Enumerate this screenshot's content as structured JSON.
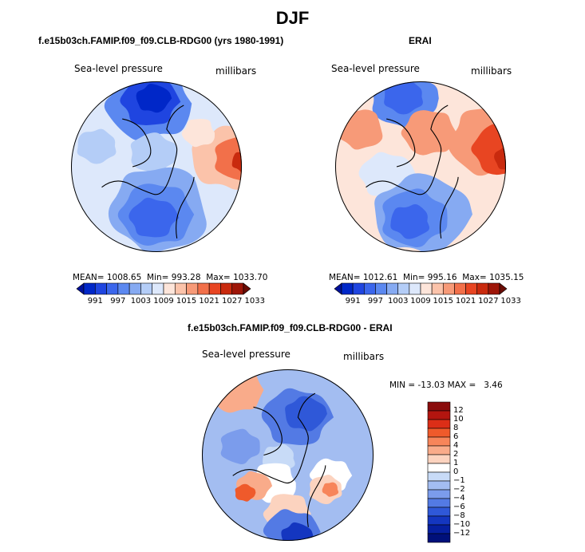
{
  "page_title": "DJF",
  "chart_data": [
    {
      "type": "heatmap",
      "projection": "north-polar-stereographic",
      "panel_title": "f.e15b03ch.FAMIP.f09_f09.CLB-RDG00 (yrs 1980-1991)",
      "left_label": "Sea-level pressure",
      "right_label": "millibars",
      "stats": {
        "mean_label": "MEAN=",
        "mean": "1008.65",
        "min_label": "Min=",
        "min": "993.28",
        "max_label": "Max=",
        "max": "1033.70"
      },
      "colorbar_ticks": [
        "991",
        "997",
        "1003",
        "1009",
        "1015",
        "1021",
        "1027",
        "1033"
      ]
    },
    {
      "type": "heatmap",
      "projection": "north-polar-stereographic",
      "panel_title": "ERAI",
      "left_label": "Sea-level pressure",
      "right_label": "millibars",
      "stats": {
        "mean_label": "MEAN=",
        "mean": "1012.61",
        "min_label": "Min=",
        "min": "995.16",
        "max_label": "Max=",
        "max": "1035.15"
      },
      "colorbar_ticks": [
        "991",
        "997",
        "1003",
        "1009",
        "1015",
        "1021",
        "1027",
        "1033"
      ]
    },
    {
      "type": "heatmap",
      "projection": "north-polar-stereographic",
      "panel_title": "f.e15b03ch.FAMIP.f09_f09.CLB-RDG00 - ERAI",
      "left_label": "Sea-level pressure",
      "right_label": "millibars",
      "minmax_text": "MIN = -13.03 MAX =   3.46",
      "min": -13.03,
      "max": 3.46,
      "colorbar_ticks": [
        "12",
        "10",
        "8",
        "6",
        "4",
        "2",
        "1",
        "0",
        "−1",
        "−2",
        "−4",
        "−6",
        "−8",
        "−10",
        "−12"
      ]
    }
  ],
  "palette_abs": [
    "#00109a",
    "#0027c8",
    "#1f45e0",
    "#3b66ec",
    "#5b88f0",
    "#86aaf2",
    "#b4cdf7",
    "#dde8fb",
    "#fde5da",
    "#fbc3aa",
    "#f79a78",
    "#f2704a",
    "#e84522",
    "#c92a0e",
    "#9e1608",
    "#6a0c05"
  ],
  "palette_diff": [
    "#8a0c0c",
    "#b3150f",
    "#dc2e17",
    "#ef5a2b",
    "#f7855a",
    "#f9ab8a",
    "#fcd3bf",
    "#ffffff",
    "#c8dbf7",
    "#a3bdf1",
    "#7b9cec",
    "#537ae4",
    "#2f58d8",
    "#1436c0",
    "#061fa0",
    "#00107a"
  ]
}
